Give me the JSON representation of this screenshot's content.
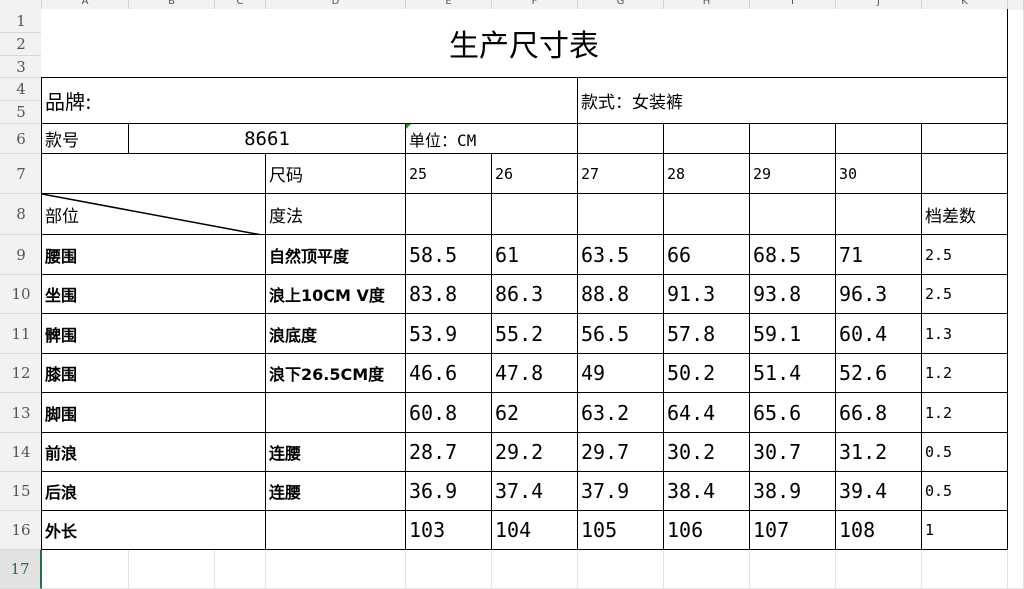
{
  "columns": [
    "A",
    "B",
    "C",
    "D",
    "E",
    "F",
    "G",
    "H",
    "I",
    "J",
    "K"
  ],
  "rows": [
    "1",
    "2",
    "3",
    "4",
    "5",
    "6",
    "7",
    "8",
    "9",
    "10",
    "11",
    "12",
    "13",
    "14",
    "15",
    "16",
    "17"
  ],
  "sheet": {
    "title": "生产尺寸表",
    "brand_label": "品牌:",
    "style_label": "款式：女装裤",
    "style_no_label": "款号",
    "style_no": "8661",
    "unit": "单位：CM",
    "size_label": "尺码",
    "part_label": "部位",
    "method_label": "度法",
    "grade_label": "档差数",
    "sizes": [
      "25",
      "26",
      "27",
      "28",
      "29",
      "30"
    ],
    "measurements": [
      {
        "part": "腰围",
        "method": "自然顶平度",
        "values": [
          "58.5",
          "61",
          "63.5",
          "66",
          "68.5",
          "71"
        ],
        "grade": "2.5"
      },
      {
        "part": "坐围",
        "method": "浪上10CM V度",
        "values": [
          "83.8",
          "86.3",
          "88.8",
          "91.3",
          "93.8",
          "96.3"
        ],
        "grade": "2.5"
      },
      {
        "part": "髀围",
        "method": "浪底度",
        "values": [
          "53.9",
          "55.2",
          "56.5",
          "57.8",
          "59.1",
          "60.4"
        ],
        "grade": "1.3"
      },
      {
        "part": "膝围",
        "method": "浪下26.5CM度",
        "values": [
          "46.6",
          "47.8",
          "49",
          "50.2",
          "51.4",
          "52.6"
        ],
        "grade": "1.2"
      },
      {
        "part": "脚围",
        "method": "",
        "values": [
          "60.8",
          "62",
          "63.2",
          "64.4",
          "65.6",
          "66.8"
        ],
        "grade": "1.2"
      },
      {
        "part": "前浪",
        "method": "连腰",
        "values": [
          "28.7",
          "29.2",
          "29.7",
          "30.2",
          "30.7",
          "31.2"
        ],
        "grade": "0.5"
      },
      {
        "part": "后浪",
        "method": "连腰",
        "values": [
          "36.9",
          "37.4",
          "37.9",
          "38.4",
          "38.9",
          "39.4"
        ],
        "grade": "0.5"
      },
      {
        "part": "外长",
        "method": "",
        "values": [
          "103",
          "104",
          "105",
          "106",
          "107",
          "108"
        ],
        "grade": "1"
      }
    ]
  }
}
